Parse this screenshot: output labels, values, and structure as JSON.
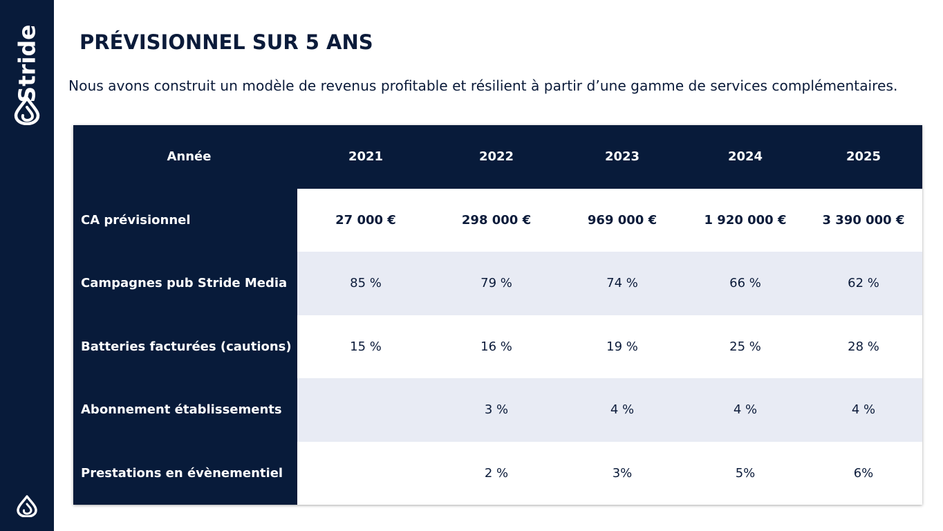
{
  "brand": {
    "name": "Stride",
    "logo_icon": "stride-logo-icon"
  },
  "title": "PRÉVISIONNEL SUR 5 ANS",
  "subtitle": "Nous avons construit un modèle de revenus profitable et résilient à partir d’une gamme de services complémentaires.",
  "colors": {
    "navy": "#081b3a",
    "shade": "#e8ebf4",
    "text": "#0b1b3a"
  },
  "table": {
    "header": {
      "label": "Année",
      "years": [
        "2021",
        "2022",
        "2023",
        "2024",
        "2025"
      ]
    },
    "rows": [
      {
        "label": "CA prévisionnel",
        "values": [
          "27 000 €",
          "298 000 €",
          "969 000 €",
          "1 920 000 €",
          "3 390 000 €"
        ]
      },
      {
        "label": "Campagnes pub Stride Media",
        "values": [
          "85 %",
          "79 %",
          "74 %",
          "66 %",
          "62 %"
        ]
      },
      {
        "label": "Batteries facturées (cautions)",
        "values": [
          "15 %",
          "16 %",
          "19 %",
          "25 %",
          "28 %"
        ]
      },
      {
        "label": "Abonnement établissements",
        "values": [
          "",
          "3 %",
          "4 %",
          "4 %",
          "4 %"
        ]
      },
      {
        "label": "Prestations en évènementiel",
        "values": [
          "",
          "2 %",
          "3%",
          "5%",
          "6%"
        ]
      }
    ]
  }
}
